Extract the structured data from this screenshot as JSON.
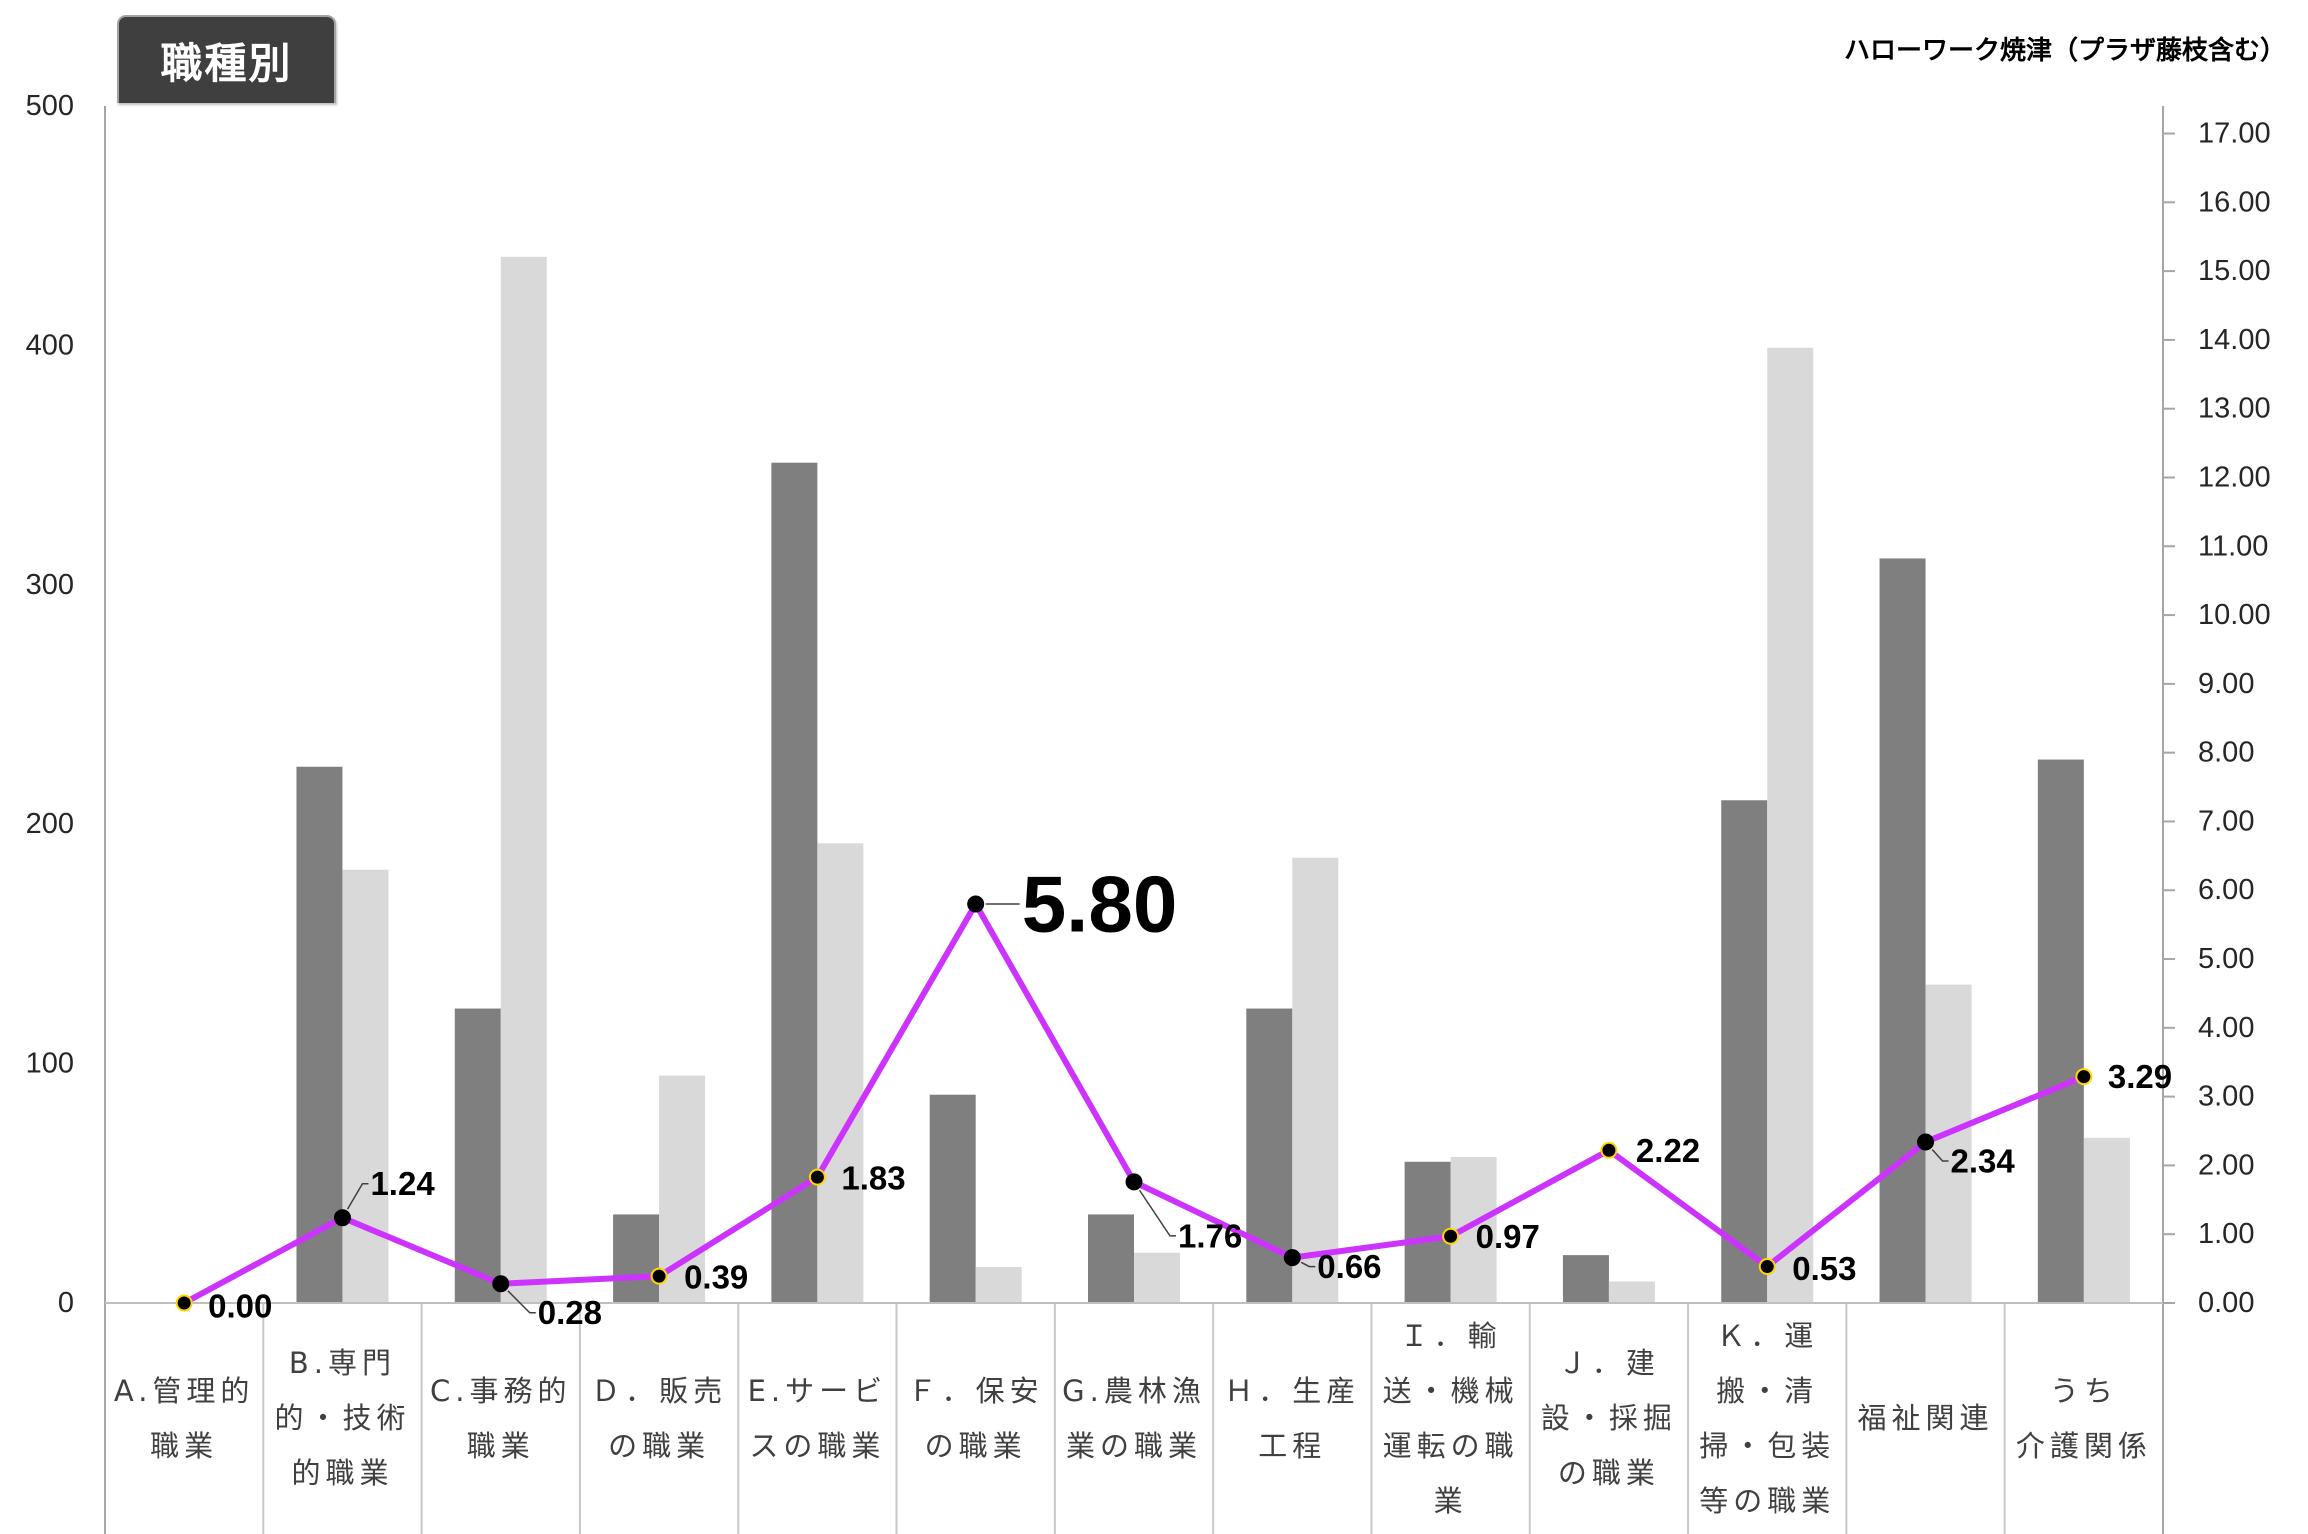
{
  "chart_data": {
    "type": "bar",
    "title": "職種別",
    "annotation": "ハローワーク焼津（プラザ藤枝含む）",
    "categories": [
      "A.管理的職業",
      "B.専門的・技術的職業",
      "C.事務的職業",
      "Ｄ．販売の職業",
      "E.サービスの職業",
      "Ｆ．保安の職業",
      "G.農林漁業の職業",
      "Ｈ．生産工程",
      "Ｉ．輸送・機械運転の職業",
      "Ｊ．建設・採掘の職業",
      "Ｋ．運搬・清掃・包装等の職業",
      "福祉関連",
      "うち\n介護関係"
    ],
    "series": [
      {
        "type": "bar",
        "axis": "left",
        "color": "#7f7f7f",
        "values": [
          0,
          224,
          123,
          37,
          351,
          87,
          37,
          123,
          59,
          20,
          210,
          311,
          227
        ]
      },
      {
        "type": "bar",
        "axis": "left",
        "color": "#d9d9d9",
        "values": [
          0,
          181,
          437,
          95,
          192,
          15,
          21,
          186,
          61,
          9,
          399,
          133,
          69
        ]
      },
      {
        "type": "line",
        "axis": "right",
        "color": "#cc33ff",
        "values": [
          0.0,
          1.24,
          0.28,
          0.39,
          1.83,
          5.8,
          1.76,
          0.66,
          0.97,
          2.22,
          0.53,
          2.34,
          3.29
        ],
        "data_labels": [
          "0.00",
          "1.24",
          "0.28",
          "0.39",
          "1.83",
          "5.80",
          "1.76",
          "0.66",
          "0.97",
          "2.22",
          "0.53",
          "2.34",
          "3.29"
        ]
      }
    ],
    "y_left": {
      "ylim": [
        0,
        500
      ],
      "tick_labels": [
        "0",
        "100",
        "200",
        "300",
        "400",
        "500"
      ]
    },
    "y_right": {
      "ylim": [
        0,
        17.4
      ],
      "tick_labels": [
        "0.00",
        "1.00",
        "2.00",
        "3.00",
        "4.00",
        "5.00",
        "6.00",
        "7.00",
        "8.00",
        "9.00",
        "10.00",
        "11.00",
        "12.00",
        "13.00",
        "14.00",
        "15.00",
        "16.00",
        "17.00"
      ]
    },
    "grid": false,
    "legend": "none"
  },
  "colors": {
    "title_bg": "#3f3f3f",
    "title_text": "#ffffff",
    "marker": "#000000",
    "marker_ring": "#ffd700",
    "axis_line": "#a6a6a6",
    "divider": "#c8c8c8"
  }
}
